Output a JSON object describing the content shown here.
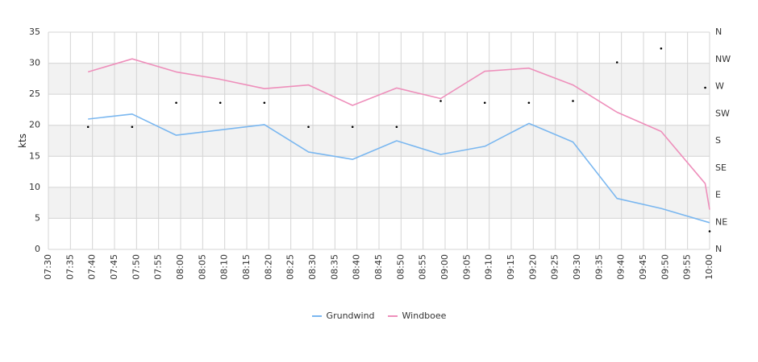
{
  "chart_data": {
    "type": "line",
    "ylabel": "kts",
    "ylim": [
      0,
      35
    ],
    "y_ticks": [
      "0",
      "5",
      "10",
      "15",
      "20",
      "25",
      "30",
      "35"
    ],
    "direction_axis": {
      "labels": [
        "N",
        "NE",
        "E",
        "SE",
        "S",
        "SW",
        "W",
        "NW",
        "N"
      ],
      "range_degrees": [
        0,
        360
      ]
    },
    "x_ticks": [
      "07:30",
      "07:35",
      "07:40",
      "07:45",
      "07:50",
      "07:55",
      "08:00",
      "08:05",
      "08:10",
      "08:15",
      "08:20",
      "08:25",
      "08:30",
      "08:35",
      "08:40",
      "08:45",
      "08:50",
      "08:55",
      "09:00",
      "09:05",
      "09:10",
      "09:15",
      "09:20",
      "09:25",
      "09:30",
      "09:35",
      "09:40",
      "09:45",
      "09:50",
      "09:55",
      "10:00"
    ],
    "grid": true,
    "banded_background": true,
    "legend_position": "bottom",
    "series": [
      {
        "name": "Grundwind",
        "color": "#7ab7f0",
        "points": [
          [
            "07:39",
            21.0
          ],
          [
            "07:49",
            21.8
          ],
          [
            "07:59",
            18.4
          ],
          [
            "08:19",
            20.1
          ],
          [
            "08:29",
            15.7
          ],
          [
            "08:39",
            14.5
          ],
          [
            "08:49",
            17.5
          ],
          [
            "08:59",
            15.3
          ],
          [
            "09:09",
            16.6
          ],
          [
            "09:19",
            20.3
          ],
          [
            "09:29",
            17.3
          ],
          [
            "09:39",
            8.2
          ],
          [
            "09:49",
            6.6
          ],
          [
            "10:00",
            4.3
          ]
        ]
      },
      {
        "name": "Windboee",
        "color": "#ee8fbb",
        "points": [
          [
            "07:39",
            28.6
          ],
          [
            "07:49",
            30.7
          ],
          [
            "07:59",
            28.6
          ],
          [
            "08:09",
            27.4
          ],
          [
            "08:19",
            25.9
          ],
          [
            "08:29",
            26.5
          ],
          [
            "08:39",
            23.2
          ],
          [
            "08:49",
            26.0
          ],
          [
            "08:59",
            24.3
          ],
          [
            "09:09",
            28.7
          ],
          [
            "09:19",
            29.2
          ],
          [
            "09:29",
            26.5
          ],
          [
            "09:39",
            22.1
          ],
          [
            "09:49",
            19.0
          ],
          [
            "09:59",
            10.6
          ],
          [
            "10:00",
            6.4
          ]
        ]
      }
    ],
    "direction_points": [
      [
        "07:39",
        203
      ],
      [
        "07:49",
        203
      ],
      [
        "07:59",
        243
      ],
      [
        "08:09",
        243
      ],
      [
        "08:19",
        243
      ],
      [
        "08:29",
        203
      ],
      [
        "08:39",
        203
      ],
      [
        "08:49",
        203
      ],
      [
        "08:59",
        246
      ],
      [
        "09:09",
        243
      ],
      [
        "09:19",
        243
      ],
      [
        "09:29",
        246
      ],
      [
        "09:39",
        310
      ],
      [
        "09:49",
        333
      ],
      [
        "09:59",
        268
      ],
      [
        "10:00",
        30
      ]
    ]
  }
}
